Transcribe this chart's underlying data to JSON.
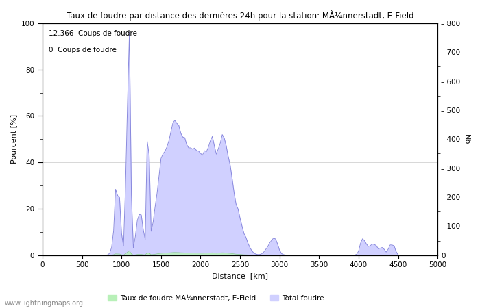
{
  "title": "Taux de foudre par distance des dernières 24h pour la station: MÃ¼nnerstadt, E-Field",
  "xlabel": "Distance  [km]",
  "ylabel_left": "Pourcent [%]",
  "ylabel_right": "Nb",
  "annotation1": "12.366  Coups de foudre",
  "annotation2": "0  Coups de foudre",
  "watermark": "www.lightningmaps.org",
  "legend1": "Taux de foudre MÃ¼nnerstadt, E-Field",
  "legend2": "Total foudre",
  "xlim": [
    0,
    5000
  ],
  "ylim_left": [
    0,
    100
  ],
  "ylim_right": [
    0,
    800
  ],
  "xticks": [
    0,
    500,
    1000,
    1500,
    2000,
    2500,
    3000,
    3500,
    4000,
    4500,
    5000
  ],
  "yticks_left": [
    0,
    20,
    40,
    60,
    80,
    100
  ],
  "yticks_right": [
    0,
    100,
    200,
    300,
    400,
    500,
    600,
    700,
    800
  ],
  "color_green": "#b8f0b8",
  "color_blue": "#d0d0ff",
  "color_line_blue": "#8888dd",
  "color_line_green": "#88cc88",
  "bg_color": "#ffffff",
  "grid_color": "#c8c8c8",
  "figsize": [
    7.0,
    4.5
  ],
  "dpi": 100
}
